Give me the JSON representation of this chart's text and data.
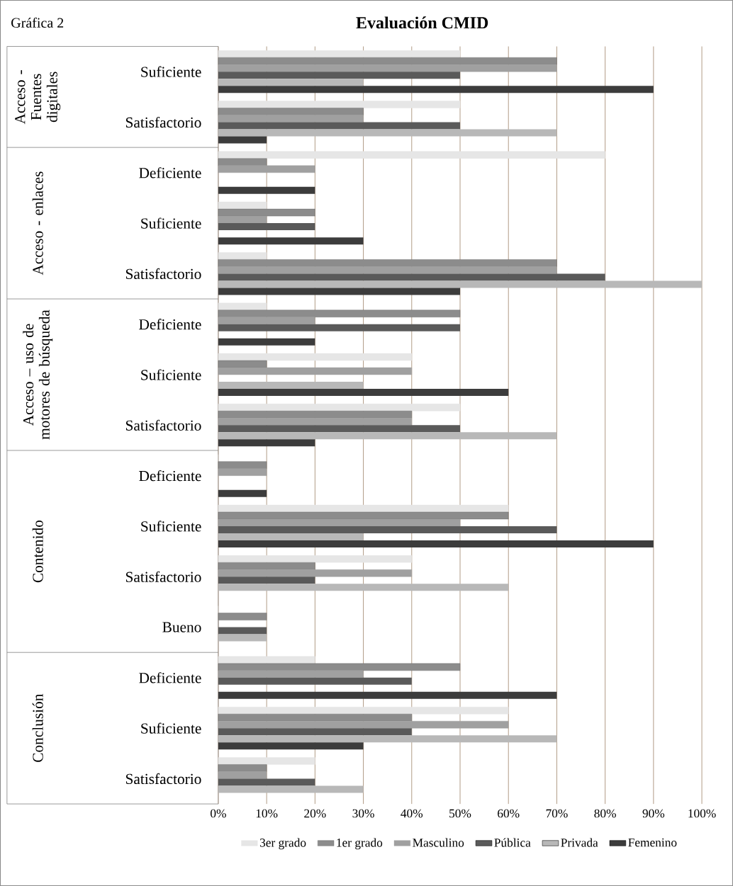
{
  "chart_data": {
    "type": "bar",
    "orientation": "horizontal",
    "title": "Evaluación CMID",
    "annotations": [
      "Gráfica 2",
      "Acceso - Fuentes digitales",
      "Acceso - enlaces",
      "Acceso – uso de motores de búsqueda",
      "Contenido",
      "Conclusión"
    ],
    "categories": [
      "Suficiente",
      "Satisfactorio",
      "Deficiente",
      "Suficiente",
      "Satisfactorio",
      "Deficiente",
      "Suficiente",
      "Satisfactorio",
      "Deficiente",
      "Suficiente",
      "Satisfactorio",
      "Bueno",
      "Deficiente",
      "Suficiente",
      "Satisfactorio"
    ],
    "series": [
      {
        "name": "3er grado",
        "color": "#e6e6e6",
        "values": [
          50,
          50,
          80,
          10,
          10,
          10,
          40,
          50,
          0,
          60,
          40,
          0,
          20,
          60,
          20
        ]
      },
      {
        "name": "1er grado",
        "color": "#8c8c8c",
        "values": [
          70,
          30,
          10,
          20,
          70,
          50,
          10,
          40,
          10,
          60,
          20,
          10,
          50,
          40,
          10
        ]
      },
      {
        "name": "Masculino",
        "color": "#a0a0a0",
        "values": [
          70,
          30,
          20,
          10,
          70,
          20,
          40,
          40,
          10,
          50,
          40,
          0,
          30,
          60,
          10
        ]
      },
      {
        "name": "Pública",
        "color": "#5a5a5a",
        "values": [
          50,
          50,
          0,
          20,
          80,
          50,
          0,
          50,
          0,
          70,
          20,
          10,
          40,
          40,
          20
        ]
      },
      {
        "name": "Privada",
        "color": "#b8b8b8",
        "values": [
          30,
          70,
          0,
          0,
          100,
          0,
          30,
          70,
          0,
          30,
          60,
          10,
          0,
          70,
          30
        ]
      },
      {
        "name": "Femenino",
        "color": "#3c3c3c",
        "values": [
          90,
          10,
          20,
          30,
          50,
          20,
          60,
          20,
          10,
          90,
          0,
          0,
          70,
          30,
          0
        ]
      }
    ],
    "xlim": [
      0,
      100
    ],
    "xticks": [
      {
        "value": 0,
        "label": "0%"
      },
      {
        "value": 10,
        "label": "10%"
      },
      {
        "value": 20,
        "label": "20%"
      },
      {
        "value": 30,
        "label": "30%"
      },
      {
        "value": 40,
        "label": "40%"
      },
      {
        "value": 50,
        "label": "50%"
      },
      {
        "value": 60,
        "label": "60%"
      },
      {
        "value": 70,
        "label": "70%"
      },
      {
        "value": 80,
        "label": "80%"
      },
      {
        "value": 90,
        "label": "90%"
      },
      {
        "value": 100,
        "label": "100%"
      }
    ],
    "grid": "x",
    "legend": "bottom"
  }
}
